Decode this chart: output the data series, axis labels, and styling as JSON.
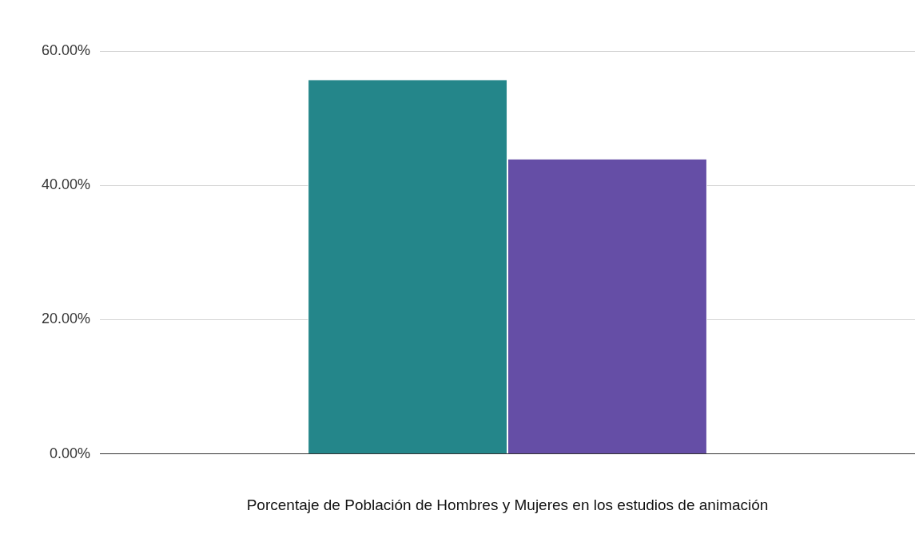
{
  "chart_data": {
    "type": "bar",
    "xlabel": "Porcentaje de Población de Hombres y Mujeres en los estudios de animación",
    "categories": [
      null
    ],
    "series": [
      {
        "color": "#24868a",
        "values": [
          55.7
        ]
      },
      {
        "color": "#654ea6",
        "values": [
          43.9
        ]
      }
    ],
    "ylim": [
      0,
      60
    ],
    "yticks": [
      {
        "value": 0,
        "label": "0.00%"
      },
      {
        "value": 20,
        "label": "20.00%"
      },
      {
        "value": 40,
        "label": "40.00%"
      },
      {
        "value": 60,
        "label": "60.00%"
      }
    ],
    "grid": "y",
    "legend": false
  }
}
